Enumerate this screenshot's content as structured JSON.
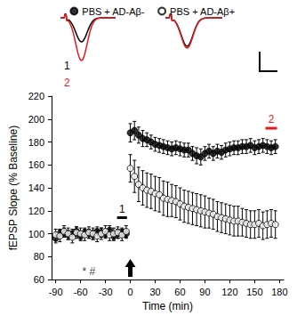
{
  "chart_data": {
    "type": "scatter",
    "xlabel": "Time (min)",
    "ylabel": "fEPSP Slope (% Baseline)",
    "xlim": [
      -95,
      185
    ],
    "xticks": [
      -90,
      -60,
      -30,
      0,
      30,
      60,
      90,
      120,
      150,
      180
    ],
    "ylim": [
      60,
      220
    ],
    "yticks": [
      60,
      80,
      100,
      120,
      140,
      160,
      180,
      200,
      220
    ],
    "grid": false,
    "legend": "top",
    "x": [
      -90,
      -85,
      -80,
      -75,
      -70,
      -65,
      -60,
      -55,
      -50,
      -45,
      -40,
      -35,
      -30,
      -25,
      -20,
      -15,
      -10,
      -5,
      0,
      5,
      10,
      15,
      20,
      25,
      30,
      35,
      40,
      45,
      50,
      55,
      60,
      65,
      70,
      75,
      80,
      85,
      90,
      95,
      100,
      105,
      110,
      115,
      120,
      125,
      130,
      135,
      140,
      145,
      150,
      155,
      160,
      165,
      170,
      175
    ],
    "series": [
      {
        "name": "PBS + AD-Aβ-",
        "color": "#000000",
        "marker": "filled_circle",
        "values": [
          96,
          100,
          101,
          99,
          100,
          102,
          98,
          101,
          100,
          99,
          102,
          101,
          100,
          103,
          98,
          100,
          101,
          100,
          188,
          190,
          186,
          183,
          182,
          180,
          178,
          177,
          176,
          175,
          174,
          175,
          174,
          173,
          173,
          170,
          168,
          167,
          170,
          172,
          170,
          172,
          171,
          173,
          174,
          175,
          175,
          176,
          176,
          177,
          175,
          176,
          177,
          176,
          175,
          176
        ],
        "errors": [
          4,
          4,
          4,
          4,
          4,
          4,
          4,
          4,
          4,
          4,
          4,
          4,
          4,
          4,
          4,
          4,
          4,
          4,
          8,
          8,
          7,
          7,
          6,
          6,
          6,
          6,
          6,
          6,
          6,
          6,
          6,
          6,
          6,
          6,
          7,
          7,
          6,
          6,
          6,
          6,
          6,
          6,
          6,
          6,
          6,
          6,
          6,
          6,
          6,
          6,
          6,
          6,
          6,
          6
        ]
      },
      {
        "name": "PBS + AD-Aβ+",
        "color": "#000000",
        "marker": "open_circle",
        "values": [
          99,
          98,
          102,
          100,
          97,
          101,
          100,
          99,
          101,
          100,
          98,
          100,
          102,
          99,
          100,
          101,
          99,
          102,
          157,
          150,
          143,
          140,
          138,
          137,
          135,
          134,
          131,
          130,
          129,
          128,
          126,
          124,
          123,
          122,
          121,
          120,
          119,
          118,
          117,
          115,
          114,
          113,
          112,
          111,
          111,
          110,
          109,
          108,
          108,
          109,
          107,
          108,
          109,
          108
        ],
        "errors": [
          5,
          5,
          5,
          5,
          5,
          5,
          5,
          5,
          5,
          5,
          5,
          5,
          5,
          5,
          5,
          5,
          5,
          5,
          12,
          14,
          15,
          15,
          15,
          15,
          15,
          15,
          15,
          15,
          14,
          14,
          14,
          14,
          14,
          14,
          14,
          14,
          14,
          13,
          13,
          13,
          13,
          13,
          13,
          13,
          13,
          12,
          12,
          12,
          12,
          12,
          12,
          12,
          12,
          12
        ]
      }
    ],
    "annotations": [
      {
        "text": "* #",
        "x": -50,
        "y": 67
      }
    ],
    "periods": [
      {
        "label": "1",
        "x": [
          -16,
          -4
        ],
        "y": 114,
        "color": "#000000"
      },
      {
        "label": "2",
        "x": [
          163,
          177
        ],
        "y": 192,
        "color": "#e41a1c"
      }
    ],
    "arrow": {
      "x": 0
    },
    "traces": [
      {
        "label": "1",
        "color": "#000000"
      },
      {
        "label": "2",
        "color": "#e41a1c"
      }
    ]
  }
}
